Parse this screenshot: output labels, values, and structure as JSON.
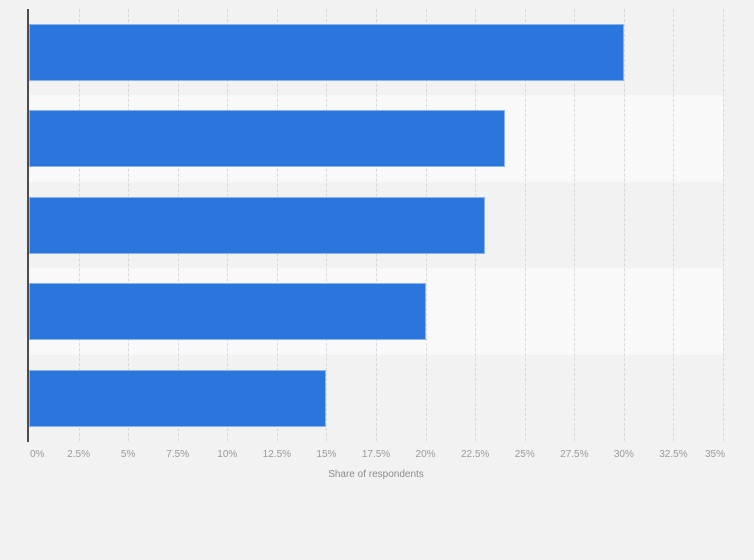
{
  "chart_data": {
    "type": "bar",
    "orientation": "horizontal",
    "title": "",
    "categories": [
      "",
      "",
      "",
      "",
      ""
    ],
    "values": [
      30,
      24,
      23,
      20,
      15
    ],
    "value_unit": "%",
    "xlabel": "Share of respondents",
    "ylabel": "",
    "xlim": [
      0,
      35
    ],
    "x_tick_step": 2.5,
    "x_tick_labels": [
      "0%",
      "2.5%",
      "5%",
      "7.5%",
      "10%",
      "12.5%",
      "15%",
      "17.5%",
      "20%",
      "22.5%",
      "25%",
      "27.5%",
      "30%",
      "32.5%",
      "35%"
    ],
    "grid": "vertical dashed gridlines at every tick",
    "legend_position": "none",
    "row_striping": "alternating"
  },
  "style": {
    "background_color": "#f2f2f2",
    "bar_color": "#2b76dd",
    "bar_border_color": "rgba(255,255,255,0.45)",
    "row_stripe_color": "#f9f9f9",
    "gridline_color": "#d8d8d8",
    "axis_line_color": "#4d4d4d",
    "tick_label_color": "#9a9a9a",
    "axis_title_color": "#8c8c8c"
  }
}
